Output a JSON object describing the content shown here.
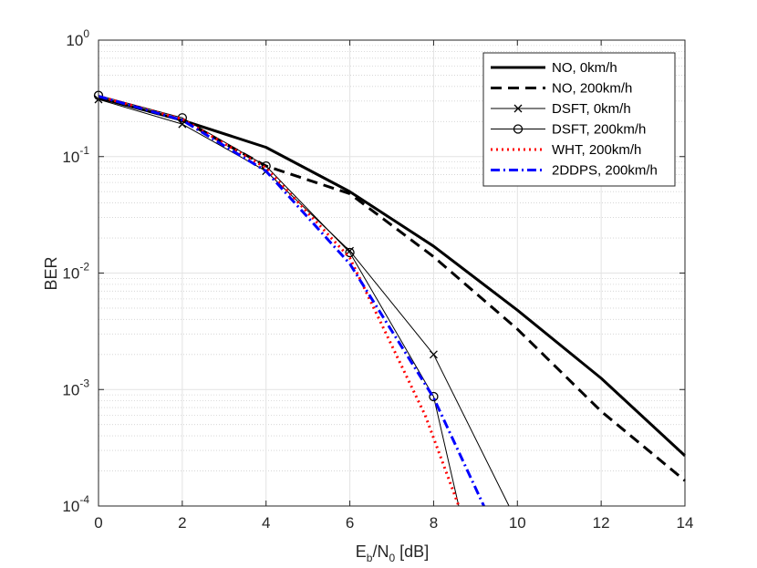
{
  "chart_data": {
    "type": "line",
    "title": "",
    "xlabel": {
      "main": "E",
      "sub1": "b",
      "mid": "/N",
      "sub2": "0",
      "rest": " [dB]"
    },
    "ylabel": "BER",
    "xlim": [
      0,
      14
    ],
    "ylim": [
      0.0001,
      1
    ],
    "yscale": "log",
    "grid": true,
    "legend_position": "top-right",
    "x_ticks": [
      0,
      2,
      4,
      6,
      8,
      10,
      12,
      14
    ],
    "y_ticks": [
      {
        "value": 1,
        "base": "10",
        "exp": "0"
      },
      {
        "value": 0.1,
        "base": "10",
        "exp": "-1"
      },
      {
        "value": 0.01,
        "base": "10",
        "exp": "-2"
      },
      {
        "value": 0.001,
        "base": "10",
        "exp": "-3"
      },
      {
        "value": 0.0001,
        "base": "10",
        "exp": "-4"
      }
    ],
    "series": [
      {
        "name": "NO, 0km/h",
        "color": "#000000",
        "dash": "solid",
        "width": 3,
        "marker": "none",
        "x": [
          0,
          2,
          4,
          6,
          8,
          10,
          12,
          14
        ],
        "y": [
          0.32,
          0.205,
          0.12,
          0.05,
          0.017,
          0.0048,
          0.00125,
          0.00027
        ]
      },
      {
        "name": "NO, 200km/h",
        "color": "#000000",
        "dash": "dashed",
        "width": 3,
        "marker": "none",
        "x": [
          0,
          2,
          4,
          6,
          8,
          10,
          12,
          14
        ],
        "y": [
          0.32,
          0.205,
          0.083,
          0.048,
          0.0138,
          0.0033,
          0.00065,
          0.000165
        ]
      },
      {
        "name": "DSFT, 0km/h",
        "color": "#000000",
        "dash": "solid",
        "width": 1,
        "marker": "x",
        "x": [
          0,
          2,
          4,
          6,
          8,
          9.8
        ],
        "y": [
          0.31,
          0.19,
          0.075,
          0.0155,
          0.002,
          0.0001
        ]
      },
      {
        "name": "DSFT, 200km/h",
        "color": "#000000",
        "dash": "solid",
        "width": 1,
        "marker": "o",
        "x": [
          0,
          2,
          4,
          6,
          8,
          8.6
        ],
        "y": [
          0.335,
          0.215,
          0.083,
          0.015,
          0.00087,
          0.0001
        ]
      },
      {
        "name": "WHT, 200km/h",
        "color": "#ff0000",
        "dash": "dotted",
        "width": 3,
        "marker": "none",
        "x": [
          0,
          2,
          4,
          6,
          7.8,
          8.6
        ],
        "y": [
          0.33,
          0.21,
          0.08,
          0.0135,
          0.0006,
          0.0001
        ]
      },
      {
        "name": "2DDPS, 200km/h",
        "color": "#0000ff",
        "dash": "dashdot",
        "width": 3,
        "marker": "none",
        "x": [
          0,
          2,
          4,
          6,
          8,
          9.2
        ],
        "y": [
          0.33,
          0.205,
          0.075,
          0.012,
          0.00085,
          0.0001
        ]
      }
    ]
  }
}
